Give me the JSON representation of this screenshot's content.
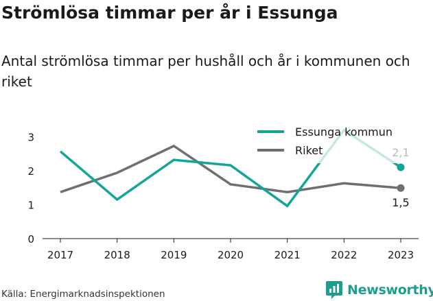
{
  "header": {
    "title": "Strömlösa timmar per år i Essunga",
    "subtitle": "Antal strömlösa timmar per hushåll och år i kommunen och riket"
  },
  "footer": {
    "source": "Källa: Energimarknadsinspektionen",
    "brand": "Newsworthy",
    "brand_icon": "newsworthy-logo-icon"
  },
  "colors": {
    "essunga": "#13a596",
    "riket": "#6e6e73",
    "text": "#1a1a1a",
    "brand": "#1b9e8e"
  },
  "chart_data": {
    "type": "line",
    "title": "Strömlösa timmar per år i Essunga",
    "subtitle": "Antal strömlösa timmar per hushåll och år i kommunen och riket",
    "xlabel": "",
    "ylabel": "",
    "x": [
      "2017",
      "2018",
      "2019",
      "2020",
      "2021",
      "2022",
      "2023"
    ],
    "ylim": [
      0,
      3.3
    ],
    "yticks": [
      0,
      1,
      2,
      3
    ],
    "grid": false,
    "legend": "top-right",
    "series": [
      {
        "name": "Essunga kommun",
        "color": "#13a596",
        "values": [
          2.57,
          1.15,
          2.32,
          2.16,
          0.96,
          3.2,
          2.1
        ],
        "end_label": "2,1"
      },
      {
        "name": "Riket",
        "color": "#6e6e73",
        "values": [
          1.37,
          1.94,
          2.73,
          1.6,
          1.37,
          1.63,
          1.49
        ],
        "end_label": "1,5"
      }
    ]
  }
}
